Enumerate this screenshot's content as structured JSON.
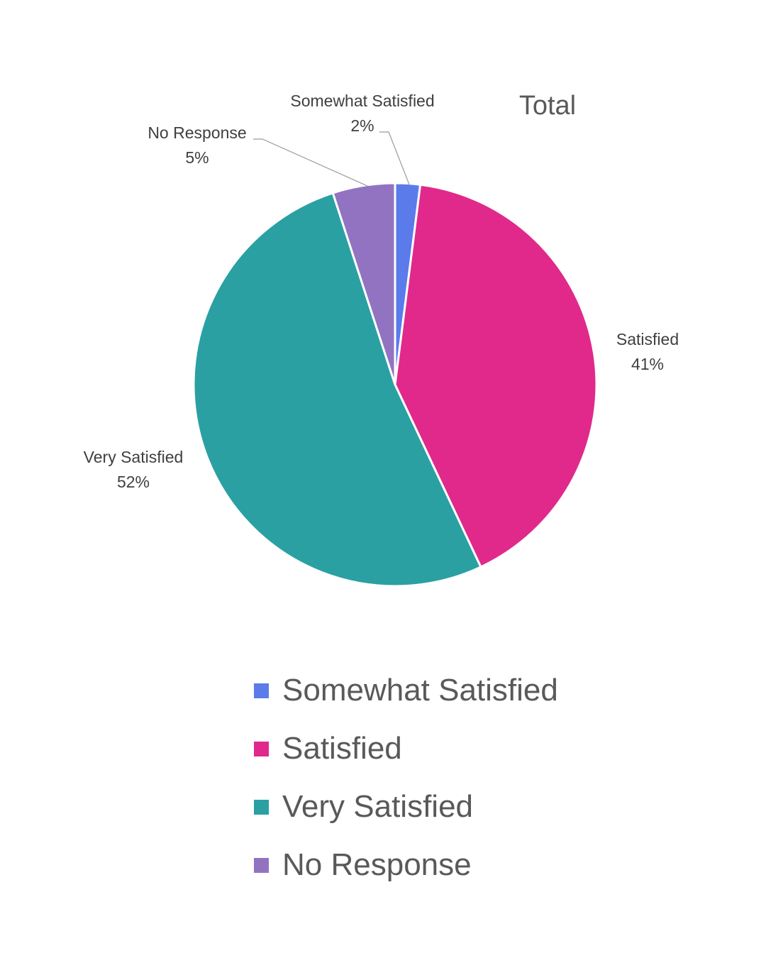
{
  "chart_data": {
    "type": "pie",
    "title": "Total",
    "slices": [
      {
        "label": "Somewhat Satisfied",
        "value": 2,
        "value_label": "2%",
        "color": "#5B7BEB"
      },
      {
        "label": "Satisfied",
        "value": 41,
        "value_label": "41%",
        "color": "#E1298B"
      },
      {
        "label": "Very Satisfied",
        "value": 52,
        "value_label": "52%",
        "color": "#2AA0A3"
      },
      {
        "label": "No Response",
        "value": 5,
        "value_label": "5%",
        "color": "#9273C2"
      }
    ],
    "legend_position": "bottom",
    "start_angle": "12 o'clock, clockwise"
  }
}
